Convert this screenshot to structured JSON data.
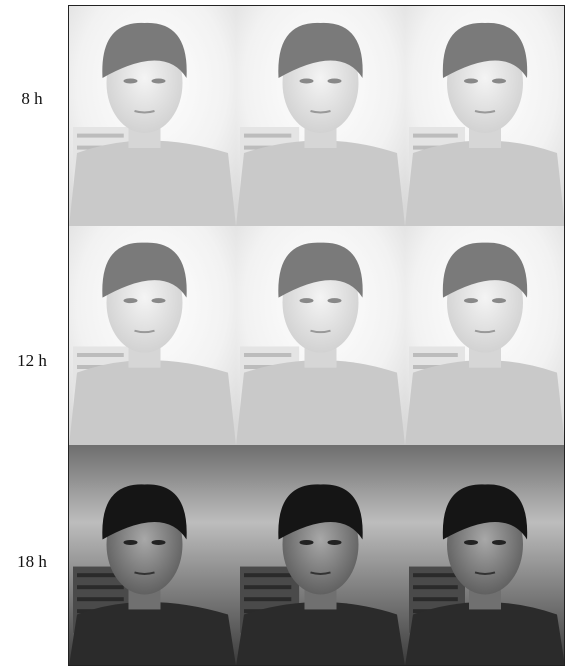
{
  "rows": [
    {
      "label": "8 h"
    },
    {
      "label": "12 h"
    },
    {
      "label": "18 h"
    }
  ]
}
